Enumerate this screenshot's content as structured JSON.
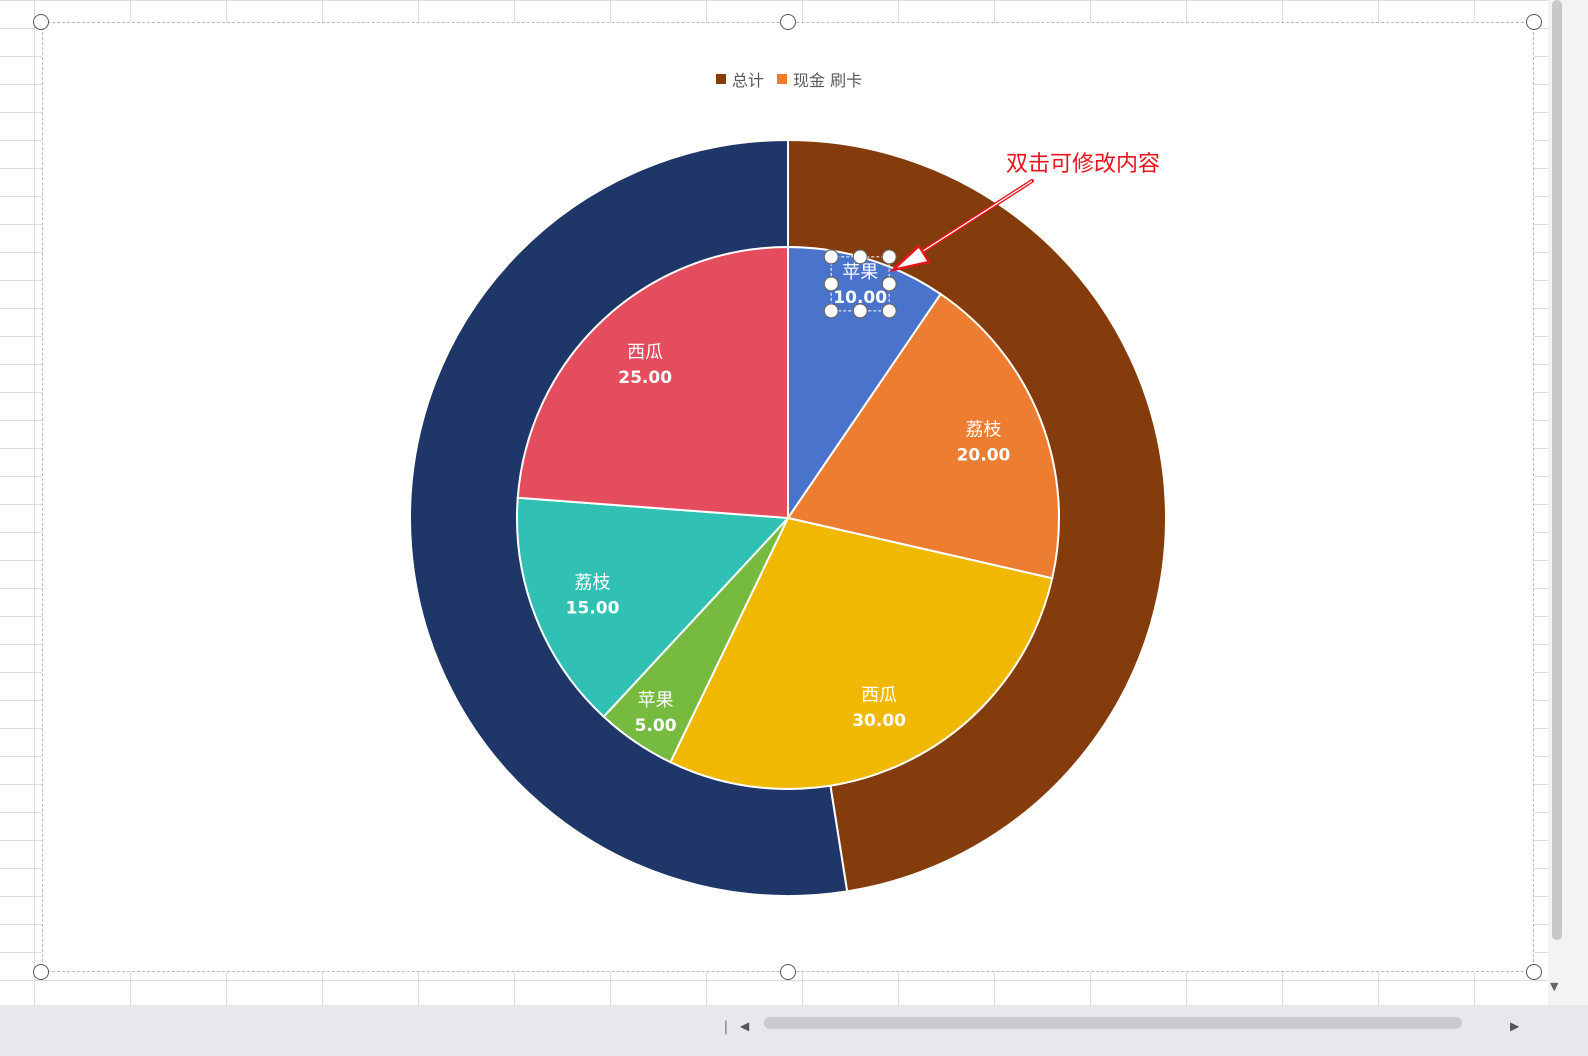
{
  "legend": {
    "items": [
      {
        "label": "总计",
        "color": "#843c0c"
      },
      {
        "label": "现金 刷卡",
        "color": "#ed7d31"
      }
    ]
  },
  "annotation": {
    "text": "双击可修改内容",
    "color": "#e8141c"
  },
  "chart_data": {
    "type": "pie",
    "subtype": "nested-donut",
    "outer_ring": {
      "slices": [
        {
          "value": 47.5,
          "color": "#843c0c"
        },
        {
          "value": 52.5,
          "color": "#1f3768"
        }
      ]
    },
    "inner_pie": {
      "slices": [
        {
          "label": "苹果",
          "value": 10.0,
          "display": "10.00",
          "color": "#4a74cc"
        },
        {
          "label": "荔枝",
          "value": 20.0,
          "display": "20.00",
          "color": "#ed7d31"
        },
        {
          "label": "西瓜",
          "value": 30.0,
          "display": "30.00",
          "color": "#f0b800"
        },
        {
          "label": "苹果",
          "value": 5.0,
          "display": "5.00",
          "color": "#76bb40"
        },
        {
          "label": "荔枝",
          "value": 15.0,
          "display": "15.00",
          "color": "#31c0b4"
        },
        {
          "label": "西瓜",
          "value": 25.0,
          "display": "25.00",
          "color": "#e34d5e"
        }
      ]
    },
    "selected_label": "苹果 10.00"
  }
}
